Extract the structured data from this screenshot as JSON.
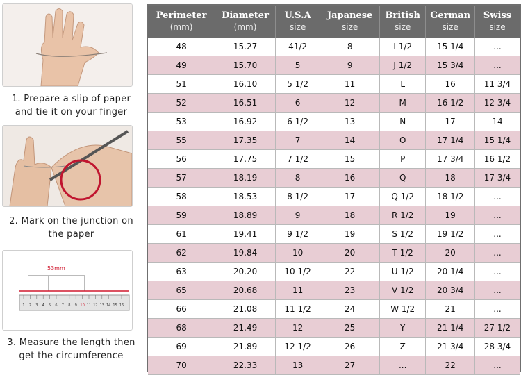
{
  "steps": [
    {
      "line1": "1. Prepare a slip of paper",
      "line2": "and tie it on your finger"
    },
    {
      "line1": "2. Mark on the junction on",
      "line2": "the paper"
    },
    {
      "line1": "3. Measure the length then",
      "line2": "get the circumference"
    }
  ],
  "ruler_label": "53mm",
  "ruler_ticks": [
    "1",
    "2",
    "3",
    "4",
    "5",
    "6",
    "7",
    "8",
    "9",
    "10",
    "11",
    "12",
    "13",
    "14",
    "15",
    "16"
  ],
  "columns": [
    {
      "title": "Perimeter",
      "sub": "(mm)"
    },
    {
      "title": "Diameter",
      "sub": "(mm)"
    },
    {
      "title": "U.S.A",
      "sub": "size"
    },
    {
      "title": "Japanese",
      "sub": "size"
    },
    {
      "title": "British",
      "sub": "size"
    },
    {
      "title": "German",
      "sub": "size"
    },
    {
      "title": "Swiss",
      "sub": "size"
    }
  ],
  "rows": [
    [
      "48",
      "15.27",
      "41/2",
      "8",
      "I 1/2",
      "15 1/4",
      "..."
    ],
    [
      "49",
      "15.70",
      "5",
      "9",
      "J 1/2",
      "15 3/4",
      "..."
    ],
    [
      "51",
      "16.10",
      "5 1/2",
      "11",
      "L",
      "16",
      "11 3/4"
    ],
    [
      "52",
      "16.51",
      "6",
      "12",
      "M",
      "16 1/2",
      "12 3/4"
    ],
    [
      "53",
      "16.92",
      "6 1/2",
      "13",
      "N",
      "17",
      "14"
    ],
    [
      "55",
      "17.35",
      "7",
      "14",
      "O",
      "17 1/4",
      "15 1/4"
    ],
    [
      "56",
      "17.75",
      "7 1/2",
      "15",
      "P",
      "17 3/4",
      "16 1/2"
    ],
    [
      "57",
      "18.19",
      "8",
      "16",
      "Q",
      "18",
      "17 3/4"
    ],
    [
      "58",
      "18.53",
      "8 1/2",
      "17",
      "Q 1/2",
      "18 1/2",
      "..."
    ],
    [
      "59",
      "18.89",
      "9",
      "18",
      "R 1/2",
      "19",
      "..."
    ],
    [
      "61",
      "19.41",
      "9 1/2",
      "19",
      "S 1/2",
      "19 1/2",
      "..."
    ],
    [
      "62",
      "19.84",
      "10",
      "20",
      "T 1/2",
      "20",
      "..."
    ],
    [
      "63",
      "20.20",
      "10 1/2",
      "22",
      "U 1/2",
      "20 1/4",
      "..."
    ],
    [
      "65",
      "20.68",
      "11",
      "23",
      "V 1/2",
      "20 3/4",
      "..."
    ],
    [
      "66",
      "21.08",
      "11 1/2",
      "24",
      "W 1/2",
      "21",
      "..."
    ],
    [
      "68",
      "21.49",
      "12",
      "25",
      "Y",
      "21 1/4",
      "27 1/2"
    ],
    [
      "69",
      "21.89",
      "12 1/2",
      "26",
      "Z",
      "21 3/4",
      "28 3/4"
    ],
    [
      "70",
      "22.33",
      "13",
      "27",
      "...",
      "22",
      "..."
    ]
  ]
}
